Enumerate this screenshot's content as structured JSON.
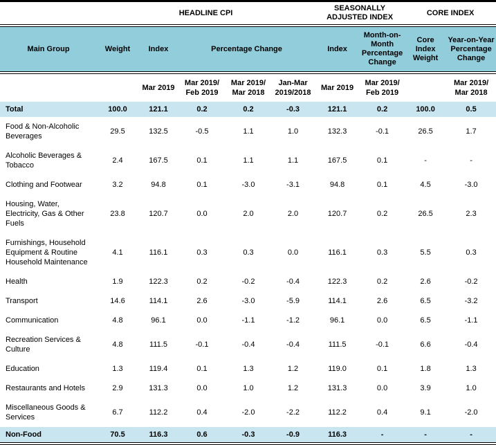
{
  "colors": {
    "header_bg": "#92CDDC",
    "highlight_bg": "#C9E6F0",
    "text": "#000000",
    "border": "#000000"
  },
  "table": {
    "group_headers": [
      {
        "label": "",
        "span": 1
      },
      {
        "label": "HEADLINE CPI",
        "span": 5
      },
      {
        "label": "SEASONALLY ADJUSTED INDEX",
        "span": 2
      },
      {
        "label": "CORE INDEX",
        "span": 2
      }
    ],
    "column_headers": [
      {
        "label": "Main Group",
        "span": 1
      },
      {
        "label": "Weight",
        "span": 1
      },
      {
        "label": "Index",
        "span": 1
      },
      {
        "label": "Percentage Change",
        "span": 3
      },
      {
        "label": "Index",
        "span": 1
      },
      {
        "label": "Month-on-Month Percentage Change",
        "span": 1
      },
      {
        "label": "Core Index Weight",
        "span": 1
      },
      {
        "label": "Year-on-Year Percentage Change",
        "span": 1
      }
    ],
    "period_headers": [
      "",
      "",
      "Mar 2019",
      "Mar 2019/ Feb 2019",
      "Mar 2019/ Mar 2018",
      "Jan-Mar 2019/2018",
      "Mar 2019",
      "Mar 2019/ Feb 2019",
      "",
      "Mar 2019/ Mar 2018"
    ],
    "rows": [
      {
        "name": "Total",
        "highlight": true,
        "values": [
          "100.0",
          "121.1",
          "0.2",
          "0.2",
          "-0.3",
          "121.1",
          "0.2",
          "100.0",
          "0.5"
        ]
      },
      {
        "name": "Food & Non-Alcoholic Beverages",
        "highlight": false,
        "values": [
          "29.5",
          "132.5",
          "-0.5",
          "1.1",
          "1.0",
          "132.3",
          "-0.1",
          "26.5",
          "1.7"
        ]
      },
      {
        "name": "Alcoholic Beverages & Tobacco",
        "highlight": false,
        "values": [
          "2.4",
          "167.5",
          "0.1",
          "1.1",
          "1.1",
          "167.5",
          "0.1",
          "-",
          "-"
        ]
      },
      {
        "name": "Clothing and Footwear",
        "highlight": false,
        "values": [
          "3.2",
          "94.8",
          "0.1",
          "-3.0",
          "-3.1",
          "94.8",
          "0.1",
          "4.5",
          "-3.0"
        ]
      },
      {
        "name": "Housing, Water, Electricity, Gas & Other Fuels",
        "highlight": false,
        "values": [
          "23.8",
          "120.7",
          "0.0",
          "2.0",
          "2.0",
          "120.7",
          "0.2",
          "26.5",
          "2.3"
        ]
      },
      {
        "name": "Furnishings, Household Equipment  & Routine Household Maintenance",
        "highlight": false,
        "values": [
          "4.1",
          "116.1",
          "0.3",
          "0.3",
          "0.0",
          "116.1",
          "0.3",
          "5.5",
          "0.3"
        ]
      },
      {
        "name": "Health",
        "highlight": false,
        "values": [
          "1.9",
          "122.3",
          "0.2",
          "-0.2",
          "-0.4",
          "122.3",
          "0.2",
          "2.6",
          "-0.2"
        ]
      },
      {
        "name": "Transport",
        "highlight": false,
        "values": [
          "14.6",
          "114.1",
          "2.6",
          "-3.0",
          "-5.9",
          "114.1",
          "2.6",
          "6.5",
          "-3.2"
        ]
      },
      {
        "name": "Communication",
        "highlight": false,
        "values": [
          "4.8",
          "96.1",
          "0.0",
          "-1.1",
          "-1.2",
          "96.1",
          "0.0",
          "6.5",
          "-1.1"
        ]
      },
      {
        "name": "Recreation Services & Culture",
        "highlight": false,
        "values": [
          "4.8",
          "111.5",
          "-0.1",
          "-0.4",
          "-0.4",
          "111.5",
          "-0.1",
          "6.6",
          "-0.4"
        ]
      },
      {
        "name": "Education",
        "highlight": false,
        "values": [
          "1.3",
          "119.4",
          "0.1",
          "1.3",
          "1.2",
          "119.0",
          "0.1",
          "1.8",
          "1.3"
        ]
      },
      {
        "name": "Restaurants and Hotels",
        "highlight": false,
        "values": [
          "2.9",
          "131.3",
          "0.0",
          "1.0",
          "1.2",
          "131.3",
          "0.0",
          "3.9",
          "1.0"
        ]
      },
      {
        "name": "Miscellaneous Goods & Services",
        "highlight": false,
        "values": [
          "6.7",
          "112.2",
          "0.4",
          "-2.0",
          "-2.2",
          "112.2",
          "0.4",
          "9.1",
          "-2.0"
        ]
      },
      {
        "name": "Non-Food",
        "highlight": true,
        "values": [
          "70.5",
          "116.3",
          "0.6",
          "-0.3",
          "-0.9",
          "116.3",
          "-",
          "-",
          "-"
        ]
      }
    ]
  }
}
